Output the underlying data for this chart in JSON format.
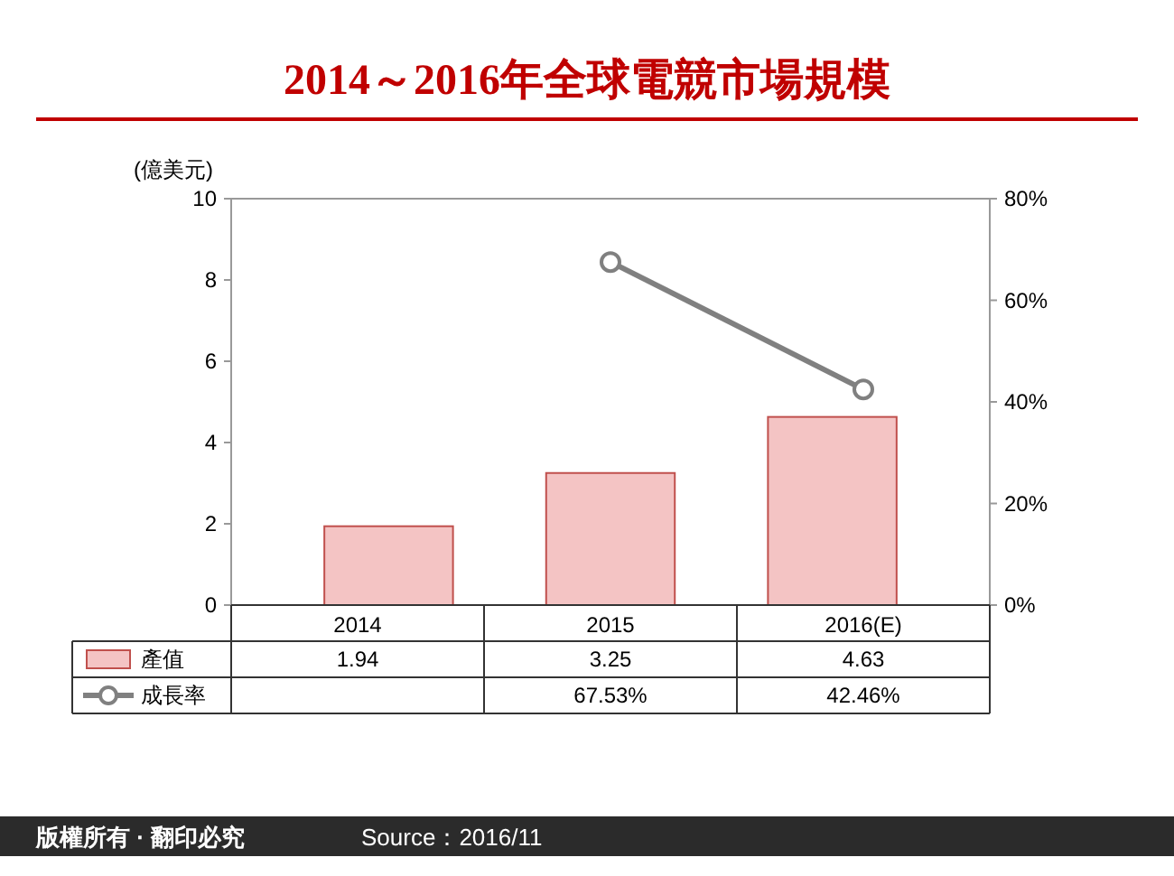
{
  "chart_data": {
    "type": "bar",
    "title": "2014～2016年全球電競市場規模",
    "ylabel": "(億美元)",
    "categories": [
      "2014",
      "2015",
      "2016(E)"
    ],
    "series": [
      {
        "name": "產值",
        "color": "#f4c4c4",
        "values": [
          1.94,
          3.25,
          4.63
        ],
        "value_labels": [
          "1.94",
          "3.25",
          "4.63"
        ]
      },
      {
        "name": "成長率",
        "type": "line",
        "axis": "y2",
        "color": "#808080",
        "marker": "circle",
        "values": [
          null,
          67.53,
          42.46
        ],
        "value_labels": [
          null,
          "67.53%",
          "42.46%"
        ]
      }
    ],
    "ylim": [
      0,
      10
    ],
    "yticks": [
      0,
      2,
      4,
      6,
      8,
      10
    ],
    "y2lim": [
      0,
      80
    ],
    "y2ticks": [
      {
        "value": 0,
        "label": "0%"
      },
      {
        "value": 20,
        "label": "20%"
      },
      {
        "value": 40,
        "label": "40%"
      },
      {
        "value": 60,
        "label": "60%"
      },
      {
        "value": 80,
        "label": "80%"
      }
    ],
    "grid": false,
    "legend": "bottom",
    "annotations": [
      "版權所有 · 翻印必究",
      "Source：2016/11"
    ]
  }
}
